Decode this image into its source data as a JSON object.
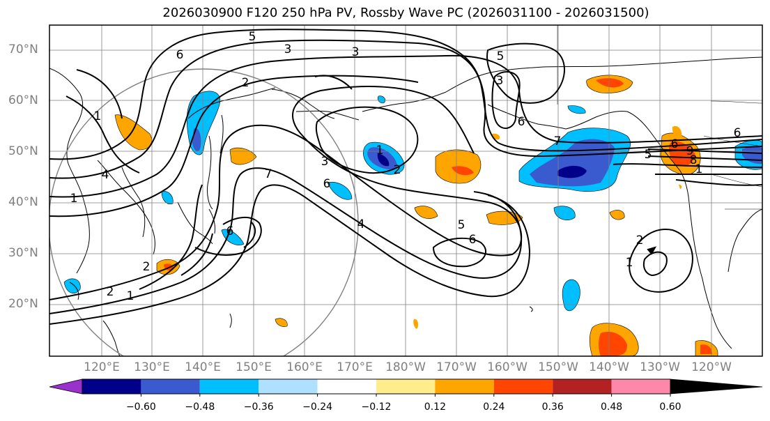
{
  "title": "2026030900 F120 250 hPa PV, Rossby Wave PC (2026031100 - 2026031500)",
  "lat_labels": [
    "70°N",
    "60°N",
    "50°N",
    "40°N",
    "30°N",
    "20°N"
  ],
  "lon_labels": [
    "120°E",
    "130°E",
    "140°E",
    "150°E",
    "160°E",
    "170°E",
    "180°W",
    "170°W",
    "160°W",
    "150°W",
    "140°W",
    "130°W",
    "120°W"
  ],
  "colorbar": {
    "ticks": [
      "−0.60",
      "−0.48",
      "−0.36",
      "−0.24",
      "−0.12",
      "0.12",
      "0.24",
      "0.36",
      "0.48",
      "0.60"
    ],
    "colors": [
      "#9932cc",
      "#00008b",
      "#3a5bd0",
      "#00bfff",
      "#b0e0ff",
      "#ffffff",
      "#ffec8b",
      "#ffa500",
      "#ff4500",
      "#b22222",
      "#ff88aa"
    ]
  },
  "contour_labels": [
    "5",
    "3",
    "3",
    "6",
    "2",
    "3",
    "1",
    "4",
    "1",
    "7",
    "6",
    "3",
    "4",
    "5",
    "6",
    "1",
    "7",
    "5",
    "6",
    "2",
    "2",
    "2",
    "1",
    "6",
    "5",
    "2",
    "1",
    "1",
    "6",
    "6",
    "8",
    "9"
  ],
  "colors": {
    "contour": "#000000",
    "grid": "#808080",
    "coast": "#000000"
  }
}
